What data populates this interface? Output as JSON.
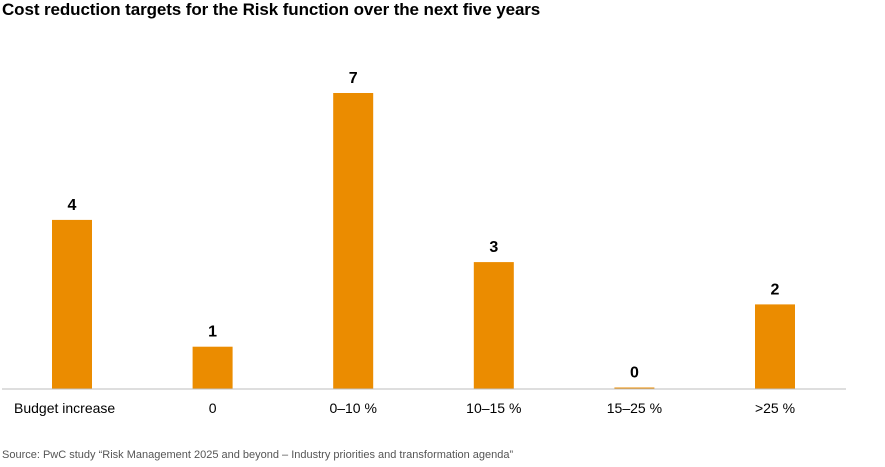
{
  "chart_data": {
    "type": "bar",
    "title": "Cost reduction targets for the Risk function over the next five years",
    "categories": [
      "Budget increase",
      "0",
      "0–10 %",
      "10–15 %",
      "15–25 %",
      ">25 %"
    ],
    "values": [
      4,
      1,
      7,
      3,
      0,
      2
    ],
    "xlabel": "",
    "ylabel": "",
    "ylim": [
      0,
      7
    ],
    "grid": false,
    "legend": "none",
    "data_labels": true,
    "bar_color": "#EB8C00",
    "baseline_color": "#BDBDBD",
    "source": "Source: PwC study “Risk Management 2025 and beyond – Industry priorities and transformation agenda”"
  }
}
